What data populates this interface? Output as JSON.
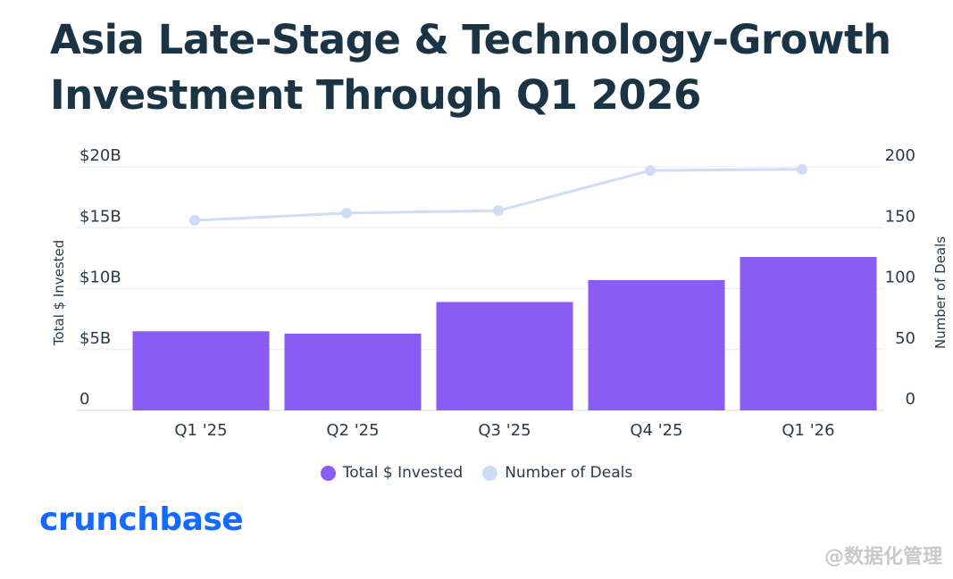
{
  "title": "Asia Late-Stage & Technology-Growth Investment Through Q1 2026",
  "brand": {
    "name": "crunchbase",
    "color": "#146aff"
  },
  "watermark": "@数据化管理",
  "chart_data": {
    "type": "bar",
    "categories": [
      "Q1 '25",
      "Q2 '25",
      "Q3 '25",
      "Q4 '25",
      "Q1 '26"
    ],
    "series": [
      {
        "name": "Total $ Invested",
        "type": "bar",
        "axis": "left",
        "color": "#8a5cf6",
        "values": [
          6.5,
          6.3,
          8.9,
          10.7,
          12.6
        ]
      },
      {
        "name": "Number of Deals",
        "type": "line",
        "axis": "right",
        "color": "#cfdcf7",
        "values": [
          156,
          162,
          164,
          197,
          198
        ]
      }
    ],
    "ylabel": "Total $ Invested",
    "y2label": "Number of Deals",
    "ylim": [
      0,
      20
    ],
    "y2lim": [
      0,
      200
    ],
    "yticks": [
      "0",
      "$5B",
      "$10B",
      "$15B",
      "$20B"
    ],
    "y2ticks": [
      "0",
      "50",
      "100",
      "150",
      "200"
    ],
    "grid": true,
    "legend_position": "bottom-center"
  }
}
